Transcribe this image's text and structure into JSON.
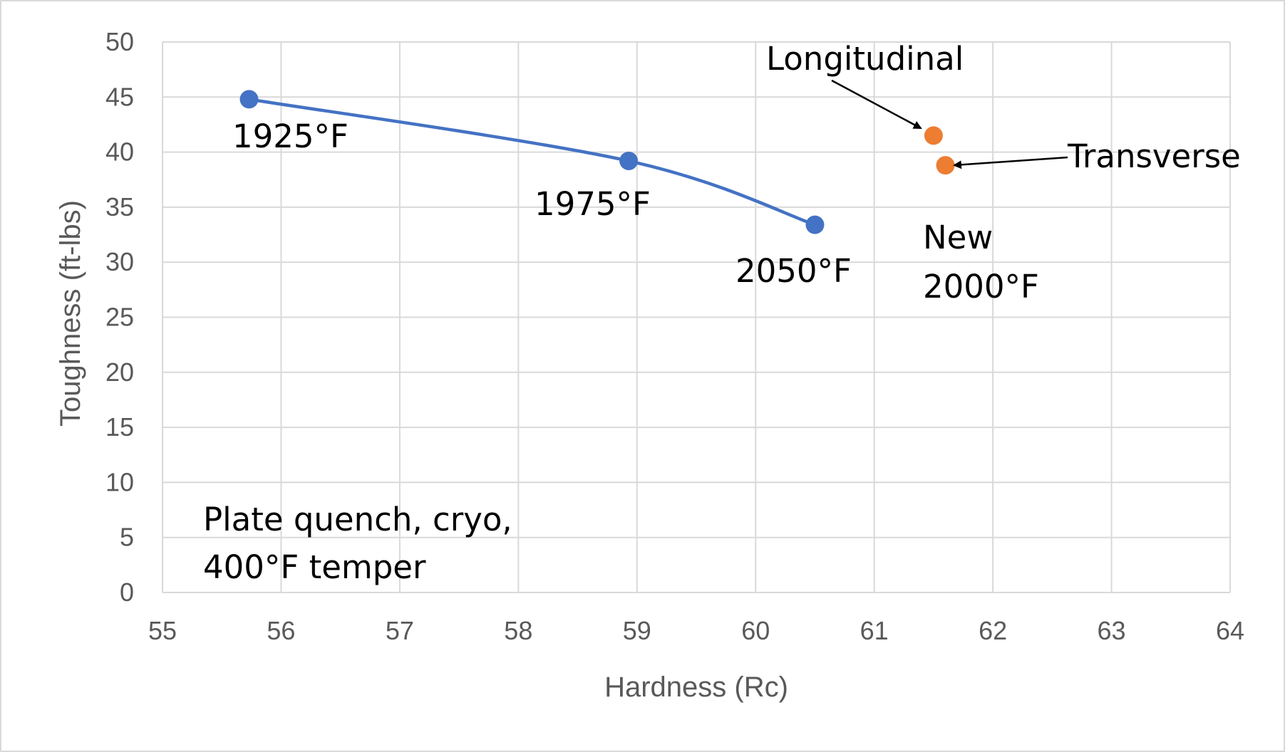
{
  "chart_data": {
    "type": "scatter",
    "xlabel": "Hardness (Rc)",
    "ylabel": "Toughness (ft-lbs)",
    "xlim": [
      55,
      64
    ],
    "ylim": [
      0,
      50
    ],
    "x_ticks": [
      55,
      56,
      57,
      58,
      59,
      60,
      61,
      62,
      63,
      64
    ],
    "y_ticks": [
      0,
      5,
      10,
      15,
      20,
      25,
      30,
      35,
      40,
      45,
      50
    ],
    "grid": true,
    "legend": "none",
    "series": [
      {
        "color": "#4472c4",
        "line": "smooth",
        "points": [
          {
            "x": 55.73,
            "y": 44.8,
            "label": "1925°F"
          },
          {
            "x": 58.93,
            "y": 39.2,
            "label": "1975°F"
          },
          {
            "x": 60.5,
            "y": 33.4,
            "label": "2050°F"
          }
        ]
      },
      {
        "color": "#ed7d31",
        "line": "none",
        "points": [
          {
            "x": 61.5,
            "y": 41.5,
            "label": "Longitudinal"
          },
          {
            "x": 61.6,
            "y": 38.8,
            "label": "Transverse"
          }
        ]
      }
    ],
    "annotations": {
      "new_line1": "New",
      "new_line2": "2000°F",
      "process_line1": "Plate quench, cryo,",
      "process_line2": "400°F temper"
    }
  }
}
